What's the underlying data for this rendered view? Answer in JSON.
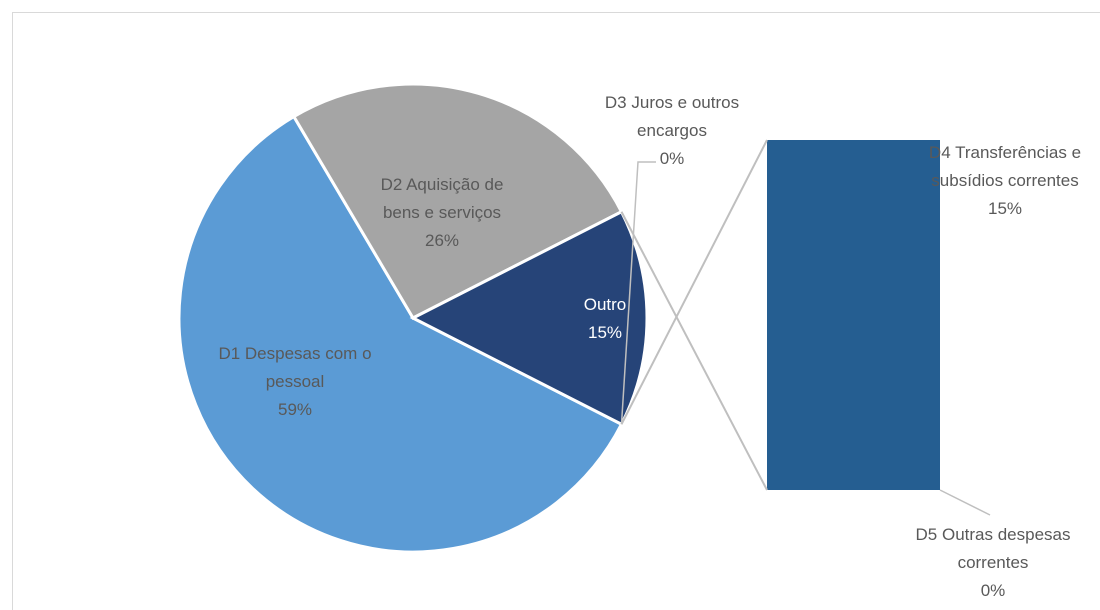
{
  "chart_data": {
    "type": "pie",
    "categories": [
      "D1 Despesas com o pessoal",
      "D2 Aquisição de bens e serviços",
      "D3 Juros e outros encargos",
      "Outro"
    ],
    "values": [
      59,
      26,
      0,
      15
    ],
    "value_labels": [
      "59%",
      "26%",
      "0%",
      "15%"
    ],
    "colors": [
      "#5b9bd5",
      "#a5a5a5",
      "#ffc000",
      "#264478"
    ],
    "secondary": {
      "categories": [
        "D4 Transferências e subsídios correntes",
        "D5 Outras despesas correntes"
      ],
      "values": [
        15,
        0
      ],
      "value_labels": [
        "15%",
        "0%"
      ],
      "colors": [
        "#255e91",
        "#9e480e"
      ]
    }
  }
}
